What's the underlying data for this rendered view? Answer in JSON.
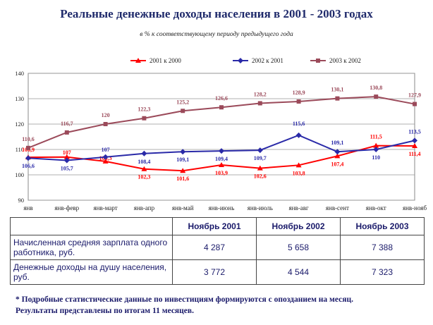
{
  "chart_data": {
    "type": "line",
    "title": "Реальные денежные доходы населения в 2001 - 2003 годах",
    "subtitle": "в % к соответствующему периоду предыдущего года",
    "categories": [
      "янв",
      "янв-февр",
      "янв-март",
      "янв-апр",
      "янв-май",
      "янв-июнь",
      "янв-июль",
      "янв-авг",
      "янв-сент",
      "янв-окт",
      "янв-нояб"
    ],
    "ylim": [
      90,
      140
    ],
    "yticks": [
      "90",
      "100",
      "110",
      "120",
      "130",
      "140"
    ],
    "grid": true,
    "legend_position": "top",
    "series": [
      {
        "name": "2001 к 2000",
        "color": "#ff0000",
        "marker": "triangle",
        "values": [
          106.9,
          107,
          105.3,
          102.3,
          101.6,
          103.9,
          102.6,
          103.8,
          107.4,
          111.5,
          111.4
        ],
        "labels": [
          "106,9",
          "107",
          "105,3",
          "102,3",
          "101,6",
          "103,9",
          "102,6",
          "103,8",
          "107,4",
          "111,5",
          "111,4"
        ]
      },
      {
        "name": "2002 к 2001",
        "color": "#2a2aa8",
        "marker": "diamond",
        "values": [
          106.6,
          105.7,
          107,
          108.4,
          109.1,
          109.4,
          109.7,
          115.6,
          109.1,
          110,
          113.5
        ],
        "labels": [
          "106,6",
          "105,7",
          "107",
          "108,4",
          "109,1",
          "109,4",
          "109,7",
          "115,6",
          "109,1",
          "110",
          "113,5"
        ]
      },
      {
        "name": "2003 к 2002",
        "color": "#9b4a5a",
        "marker": "square",
        "values": [
          110.6,
          116.7,
          120,
          122.3,
          125.2,
          126.6,
          128.2,
          128.9,
          130.1,
          130.8,
          127.9
        ],
        "labels": [
          "110,6",
          "116,7",
          "120",
          "122,3",
          "125,2",
          "126,6",
          "128,2",
          "128,9",
          "130,1",
          "130,8",
          "127,9"
        ]
      }
    ]
  },
  "table": {
    "headers": [
      "",
      "Ноябрь 2001",
      "Ноябрь 2002",
      "Ноябрь 2003"
    ],
    "rows": [
      {
        "label": "Начисленная средняя зарплата одного работника, руб.",
        "values": [
          "4 287",
          "5 658",
          "7 388"
        ]
      },
      {
        "label": "Денежные доходы на душу населения, руб.",
        "values": [
          "3 772",
          "4 544",
          "7 323"
        ]
      }
    ]
  },
  "footnote": {
    "line1": "* Подробные статистические данные по инвестициям формируются с опозданием на месяц.",
    "line2": "Результаты представлены по итогам 11 месяцев."
  }
}
